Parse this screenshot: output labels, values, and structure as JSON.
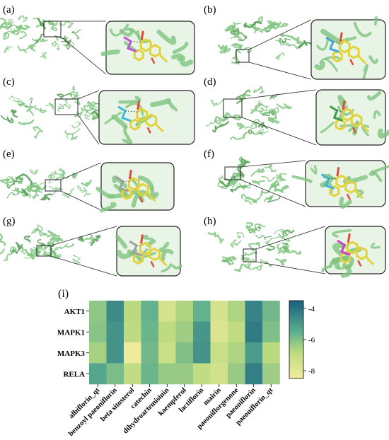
{
  "panels": [
    {
      "label": "(a)",
      "accent": "#c050d0"
    },
    {
      "label": "(b)",
      "accent": "#40a8d8"
    },
    {
      "label": "(c)",
      "accent": "#40b8d8"
    },
    {
      "label": "(d)",
      "accent": "#3a9a4a"
    },
    {
      "label": "(e)",
      "accent": "#a0a0a0"
    },
    {
      "label": "(f)",
      "accent": "#40b0e0"
    },
    {
      "label": "(g)",
      "accent": "#a0a0a0"
    },
    {
      "label": "(h)",
      "accent": "#d040c0"
    }
  ],
  "colors": {
    "protein": "#7fc47f",
    "protein_dark": "#4f9a4f",
    "ligand": "#e3d33a",
    "oxygen": "#e04a3a",
    "heat_low": "#f3ec9e",
    "heat_mid": "#5cae8f",
    "heat_high": "#1a5f7e"
  },
  "heatmap": {
    "label": "(i)",
    "chart_data": {
      "type": "heatmap",
      "rows": [
        "AKT1",
        "MAPK1",
        "MAPK3",
        "RELA"
      ],
      "columns": [
        "albiflorin_qt",
        "benzoyl paeoniflorin",
        "beta sitosterol",
        "catechin",
        "dihydroartemisinin",
        "kaempferol",
        "lactiflorin",
        "mairin",
        "paeoniflorgenone",
        "paeoniflorin",
        "paeoniflorin_qt"
      ],
      "values": [
        [
          -6.2,
          -4.6,
          -6.8,
          -5.6,
          -7.6,
          -6.6,
          -5.6,
          -7.6,
          -6.6,
          -4.4,
          -5.8
        ],
        [
          -6.1,
          -4.8,
          -6.9,
          -5.7,
          -6.9,
          -6.4,
          -4.9,
          -7.8,
          -7.0,
          -4.2,
          -6.0
        ],
        [
          -6.5,
          -4.8,
          -8.4,
          -5.8,
          -7.2,
          -6.0,
          -4.8,
          -7.2,
          -6.6,
          -5.0,
          -6.8
        ],
        [
          -5.3,
          -5.9,
          -7.0,
          -5.7,
          -6.3,
          -6.3,
          -7.0,
          -7.5,
          -6.3,
          -4.3,
          -6.4
        ]
      ],
      "colorbar_ticks": [
        "-4",
        "-6",
        "-8"
      ],
      "vmin": -8.5,
      "vmax": -3.5
    }
  }
}
